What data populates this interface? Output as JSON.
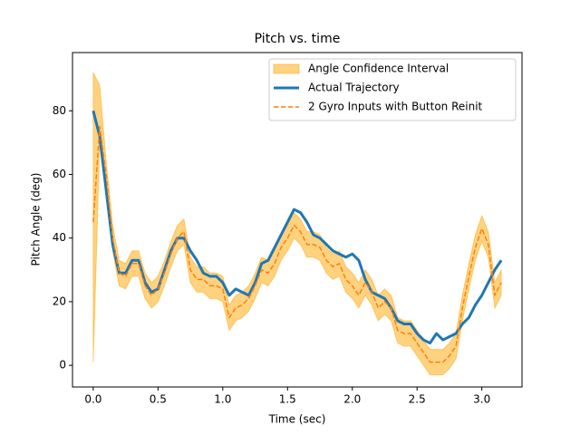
{
  "chart_data": {
    "type": "line",
    "title": "Pitch vs. time",
    "xlabel": "Time (sec)",
    "ylabel": "Pitch Angle (deg)",
    "xlim": [
      -0.16,
      3.31
    ],
    "ylim": [
      -6.8,
      98.3
    ],
    "xticks": [
      {
        "value": 0,
        "label": "0.0"
      },
      0.5,
      {
        "value": 1,
        "label": "1.0"
      },
      1.5,
      {
        "value": 2,
        "label": "2.0"
      },
      2.5,
      {
        "value": 3,
        "label": "3.0"
      }
    ],
    "yticks": [
      0,
      20,
      40,
      60,
      80
    ],
    "legend": "upper right",
    "x": [
      0,
      0.05,
      0.1,
      0.15,
      0.2,
      0.25,
      0.3,
      0.35,
      0.4,
      0.45,
      0.5,
      0.55,
      0.6,
      0.65,
      0.7,
      0.75,
      0.8,
      0.85,
      0.9,
      0.95,
      1.0,
      1.05,
      1.1,
      1.15,
      1.2,
      1.25,
      1.3,
      1.35,
      1.4,
      1.45,
      1.5,
      1.55,
      1.6,
      1.65,
      1.7,
      1.75,
      1.8,
      1.85,
      1.9,
      1.95,
      2.0,
      2.05,
      2.1,
      2.15,
      2.2,
      2.25,
      2.3,
      2.35,
      2.4,
      2.45,
      2.5,
      2.55,
      2.6,
      2.65,
      2.7,
      2.75,
      2.8,
      2.85,
      2.9,
      2.95,
      3.0,
      3.05,
      3.1,
      3.15
    ],
    "series": [
      {
        "name": "Angle Confidence Interval",
        "color": "#ffa500",
        "kind": "band",
        "lower": [
          1,
          70,
          56,
          36,
          25,
          24,
          28,
          28,
          21,
          18,
          20,
          25,
          31,
          36,
          38,
          26,
          23,
          23,
          21,
          21,
          20,
          11,
          14,
          15,
          17,
          21,
          26,
          25,
          28,
          33,
          36,
          40,
          38,
          34,
          34,
          33,
          29,
          27,
          28,
          23,
          21,
          18,
          22,
          19,
          14,
          16,
          14,
          7,
          6,
          6,
          3,
          0,
          -3,
          -3,
          -3,
          -1,
          2,
          14,
          24,
          33,
          39,
          34,
          18,
          22
        ],
        "upper": [
          92,
          88,
          64,
          44,
          33,
          32,
          36,
          36,
          29,
          26,
          28,
          33,
          39,
          44,
          46,
          34,
          31,
          31,
          29,
          29,
          28,
          19,
          22,
          23,
          25,
          29,
          34,
          33,
          36,
          41,
          44,
          48,
          46,
          42,
          42,
          41,
          37,
          35,
          36,
          31,
          29,
          26,
          30,
          27,
          22,
          24,
          22,
          15,
          14,
          14,
          11,
          8,
          5,
          5,
          5,
          7,
          10,
          22,
          32,
          41,
          47,
          42,
          26,
          30
        ]
      },
      {
        "name": "Actual Trajectory",
        "color": "#1f77b4",
        "kind": "solid",
        "values": [
          80,
          72,
          55,
          38,
          29,
          29,
          33,
          33,
          26,
          23,
          24,
          30,
          36,
          40,
          40,
          36,
          33,
          29,
          28,
          28,
          26,
          22,
          24,
          23,
          22,
          26,
          32,
          33,
          37,
          41,
          45,
          49,
          48,
          45,
          41,
          40,
          38,
          36,
          35,
          34,
          35,
          33,
          27,
          23,
          22,
          21,
          18,
          14,
          13,
          13,
          10,
          8,
          7,
          10,
          8,
          9,
          10,
          13,
          15,
          19,
          22,
          26,
          30,
          33
        ]
      },
      {
        "name": "2 Gyro Inputs with Button Reinit",
        "color": "#ff7f0e",
        "kind": "dashed",
        "values": [
          45,
          75,
          60,
          40,
          29,
          28,
          32,
          32,
          25,
          22,
          24,
          29,
          35,
          40,
          42,
          30,
          27,
          27,
          25,
          25,
          24,
          15,
          18,
          19,
          21,
          25,
          30,
          29,
          32,
          37,
          40,
          44,
          42,
          38,
          38,
          37,
          33,
          31,
          32,
          27,
          25,
          22,
          26,
          23,
          18,
          20,
          18,
          11,
          10,
          10,
          7,
          4,
          1,
          1,
          1,
          3,
          6,
          18,
          28,
          37,
          43,
          38,
          22,
          26
        ]
      }
    ]
  }
}
